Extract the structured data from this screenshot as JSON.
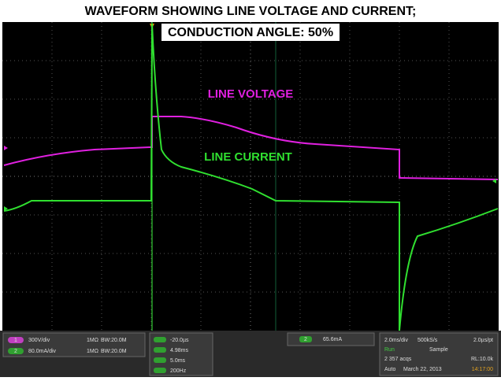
{
  "header": {
    "title": "WAVEFORM SHOWING LINE VOLTAGE AND CURRENT;",
    "subtitle": "CONDUCTION ANGLE: 50%"
  },
  "traces": {
    "voltage_label": "LINE VOLTAGE",
    "current_label": "LINE CURRENT"
  },
  "status": {
    "channels": [
      {
        "badge": "1",
        "scale": "300V/div",
        "impedance": "1MΩ",
        "bandwidth": "BW:20.0M"
      },
      {
        "badge": "2",
        "scale": "80.0mA/div",
        "impedance": "1MΩ",
        "bandwidth": "BW:20.0M"
      }
    ],
    "cursors": [
      "-20.0µs",
      "4.98ms",
      "5.0ms",
      "200Hz"
    ],
    "trigger": {
      "badge": "2",
      "level": "65.6mA"
    },
    "acquisition": {
      "timebase": "2.0ms/div",
      "rate": "500kS/s",
      "resolution": "2.0µs/pt",
      "state": "Run",
      "mode": "Sample",
      "acqs": "2 357 acqs",
      "record": "RL:10.0k",
      "trigger_mode": "Auto",
      "date": "March 22, 2013",
      "time": "14:17:00"
    }
  }
}
